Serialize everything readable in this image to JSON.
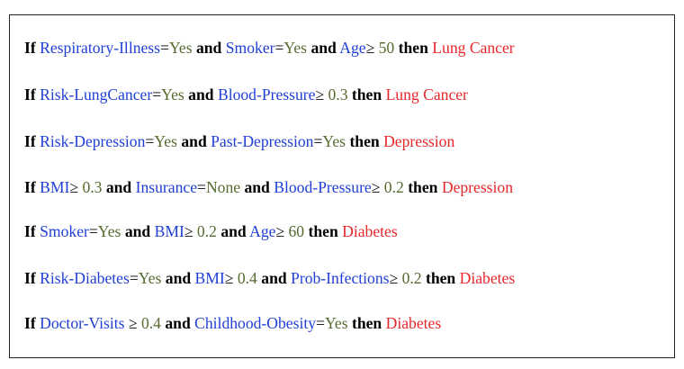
{
  "colors": {
    "attribute": "#1f3fd6",
    "value": "#556b2f",
    "outcome": "#e8262a",
    "keyword": "#000000"
  },
  "rules": [
    [
      {
        "t": "If",
        "k": "kw"
      },
      {
        "t": " "
      },
      {
        "t": "Respiratory-Illness",
        "k": "attr"
      },
      {
        "t": "=",
        "k": "op"
      },
      {
        "t": "Yes",
        "k": "val"
      },
      {
        "t": " "
      },
      {
        "t": "and",
        "k": "kw"
      },
      {
        "t": " "
      },
      {
        "t": "Smoker",
        "k": "attr"
      },
      {
        "t": "=",
        "k": "op"
      },
      {
        "t": "Yes",
        "k": "val"
      },
      {
        "t": " "
      },
      {
        "t": "and",
        "k": "kw"
      },
      {
        "t": " "
      },
      {
        "t": "Age",
        "k": "attr"
      },
      {
        "t": "≥ ",
        "k": "op"
      },
      {
        "t": "50",
        "k": "val"
      },
      {
        "t": " "
      },
      {
        "t": "then",
        "k": "kw"
      },
      {
        "t": " "
      },
      {
        "t": "Lung Cancer",
        "k": "out"
      }
    ],
    [
      {
        "t": "If",
        "k": "kw"
      },
      {
        "t": " "
      },
      {
        "t": "Risk-LungCancer",
        "k": "attr"
      },
      {
        "t": "=",
        "k": "op"
      },
      {
        "t": "Yes",
        "k": "val"
      },
      {
        "t": " "
      },
      {
        "t": "and",
        "k": "kw"
      },
      {
        "t": " "
      },
      {
        "t": "Blood-Pressure",
        "k": "attr"
      },
      {
        "t": "≥ ",
        "k": "op"
      },
      {
        "t": "0.3",
        "k": "val"
      },
      {
        "t": " "
      },
      {
        "t": "then",
        "k": "kw"
      },
      {
        "t": " "
      },
      {
        "t": "Lung Cancer",
        "k": "out"
      }
    ],
    [
      {
        "t": "If",
        "k": "kw"
      },
      {
        "t": " "
      },
      {
        "t": "Risk-Depression",
        "k": "attr"
      },
      {
        "t": "=",
        "k": "op"
      },
      {
        "t": "Yes",
        "k": "val"
      },
      {
        "t": " "
      },
      {
        "t": "and",
        "k": "kw"
      },
      {
        "t": " "
      },
      {
        "t": "Past-Depression",
        "k": "attr"
      },
      {
        "t": "=",
        "k": "op"
      },
      {
        "t": "Yes",
        "k": "val"
      },
      {
        "t": " "
      },
      {
        "t": "then",
        "k": "kw"
      },
      {
        "t": " "
      },
      {
        "t": "Depression",
        "k": "out"
      }
    ],
    [
      {
        "t": "If",
        "k": "kw"
      },
      {
        "t": " "
      },
      {
        "t": "BMI",
        "k": "attr"
      },
      {
        "t": "≥ ",
        "k": "op"
      },
      {
        "t": "0.3",
        "k": "val"
      },
      {
        "t": " "
      },
      {
        "t": "and",
        "k": "kw"
      },
      {
        "t": " "
      },
      {
        "t": "Insurance",
        "k": "attr"
      },
      {
        "t": "=",
        "k": "op"
      },
      {
        "t": "None",
        "k": "val"
      },
      {
        "t": " "
      },
      {
        "t": "and",
        "k": "kw"
      },
      {
        "t": " "
      },
      {
        "t": "Blood-Pressure",
        "k": "attr"
      },
      {
        "t": "≥ ",
        "k": "op"
      },
      {
        "t": "0.2",
        "k": "val"
      },
      {
        "t": " "
      },
      {
        "t": "then",
        "k": "kw"
      },
      {
        "t": " "
      },
      {
        "t": "Depression",
        "k": "out"
      }
    ],
    [
      {
        "t": "If",
        "k": "kw"
      },
      {
        "t": " "
      },
      {
        "t": "Smoker",
        "k": "attr"
      },
      {
        "t": "=",
        "k": "op"
      },
      {
        "t": "Yes",
        "k": "val"
      },
      {
        "t": " "
      },
      {
        "t": "and",
        "k": "kw"
      },
      {
        "t": " "
      },
      {
        "t": "BMI",
        "k": "attr"
      },
      {
        "t": "≥ ",
        "k": "op"
      },
      {
        "t": "0.2",
        "k": "val"
      },
      {
        "t": " "
      },
      {
        "t": "and",
        "k": "kw"
      },
      {
        "t": " "
      },
      {
        "t": "Age",
        "k": "attr"
      },
      {
        "t": "≥ ",
        "k": "op"
      },
      {
        "t": "60",
        "k": "val"
      },
      {
        "t": " "
      },
      {
        "t": "then",
        "k": "kw"
      },
      {
        "t": " "
      },
      {
        "t": "Diabetes",
        "k": "out"
      }
    ],
    [
      {
        "t": "If",
        "k": "kw"
      },
      {
        "t": " "
      },
      {
        "t": "Risk-Diabetes",
        "k": "attr"
      },
      {
        "t": "=",
        "k": "op"
      },
      {
        "t": "Yes",
        "k": "val"
      },
      {
        "t": " "
      },
      {
        "t": "and",
        "k": "kw"
      },
      {
        "t": " "
      },
      {
        "t": "BMI",
        "k": "attr"
      },
      {
        "t": "≥ ",
        "k": "op"
      },
      {
        "t": "0.4",
        "k": "val"
      },
      {
        "t": " "
      },
      {
        "t": "and",
        "k": "kw"
      },
      {
        "t": " "
      },
      {
        "t": "Prob-Infections",
        "k": "attr"
      },
      {
        "t": "≥ ",
        "k": "op"
      },
      {
        "t": "0.2",
        "k": "val"
      },
      {
        "t": " "
      },
      {
        "t": "then",
        "k": "kw"
      },
      {
        "t": " "
      },
      {
        "t": "Diabetes",
        "k": "out"
      }
    ],
    [
      {
        "t": "If",
        "k": "kw"
      },
      {
        "t": " "
      },
      {
        "t": "Doctor-Visits",
        "k": "attr"
      },
      {
        "t": " ≥ ",
        "k": "op"
      },
      {
        "t": "0.4",
        "k": "val"
      },
      {
        "t": " "
      },
      {
        "t": "and",
        "k": "kw"
      },
      {
        "t": " "
      },
      {
        "t": "Childhood-Obesity",
        "k": "attr"
      },
      {
        "t": "=",
        "k": "op"
      },
      {
        "t": "Yes",
        "k": "val"
      },
      {
        "t": " "
      },
      {
        "t": "then",
        "k": "kw"
      },
      {
        "t": " "
      },
      {
        "t": "Diabetes",
        "k": "out"
      }
    ]
  ]
}
